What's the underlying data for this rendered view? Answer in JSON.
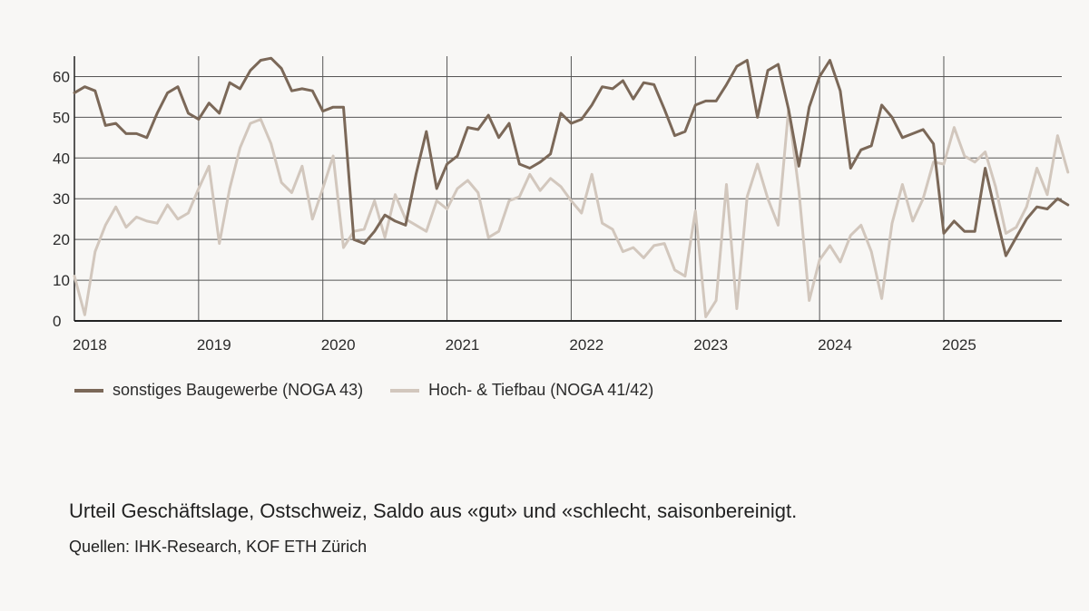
{
  "colors": {
    "series_dark": "#7b6858",
    "series_light": "#d2c7bd",
    "grid": "#555555",
    "axis": "#222222",
    "background": "#f8f7f5"
  },
  "chart_data": {
    "type": "line",
    "ylim": [
      0,
      65
    ],
    "yticks": [
      0,
      10,
      20,
      30,
      40,
      50,
      60
    ],
    "x_start_year": 2018,
    "x_end": 2025.95,
    "xticks": [
      "2018",
      "2019",
      "2020",
      "2021",
      "2022",
      "2023",
      "2024",
      "2025"
    ],
    "grid": true,
    "legend_position": "bottom-left",
    "series": [
      {
        "name": "sonstiges Baugewerbe (NOGA 43)",
        "color": "#7b6858",
        "values": [
          56,
          57.5,
          56.5,
          48,
          48.5,
          46,
          46,
          45,
          51,
          56,
          57.5,
          51,
          49.5,
          53.5,
          51,
          58.5,
          57,
          61.5,
          64,
          64.5,
          62,
          56.5,
          57,
          56.5,
          51.5,
          52.5,
          52.5,
          20,
          19,
          22,
          26,
          24.5,
          23.5,
          36,
          46.5,
          32.5,
          38.5,
          40.5,
          47.5,
          47,
          50.5,
          45,
          48.5,
          38.5,
          37.5,
          39,
          41,
          51,
          48.5,
          49.5,
          53,
          57.5,
          57,
          59,
          54.5,
          58.5,
          58,
          52,
          45.5,
          46.5,
          53,
          54,
          54,
          58,
          62.5,
          64,
          50,
          61.5,
          63,
          52,
          38,
          52.5,
          60,
          64,
          56.5,
          37.5,
          42,
          43,
          53,
          50,
          45,
          46,
          47,
          43.5,
          21.5,
          24.5,
          22,
          22,
          37.5,
          26.5,
          16,
          20.5,
          25,
          28,
          27.5,
          30,
          28.5
        ]
      },
      {
        "name": "Hoch- & Tiefbau (NOGA 41/42)",
        "color": "#d2c7bd",
        "values": [
          11,
          1.5,
          17,
          23.5,
          28,
          23,
          25.5,
          24.5,
          24,
          28.5,
          25,
          26.5,
          32.5,
          38,
          19,
          32.5,
          42.5,
          48.5,
          49.5,
          43.5,
          34,
          31.5,
          38,
          25,
          32.5,
          40.5,
          18,
          22,
          22.5,
          29.5,
          20.5,
          31,
          25,
          23.5,
          22,
          29.5,
          27.5,
          32.5,
          34.5,
          31.5,
          20.5,
          22,
          29.5,
          30.5,
          36,
          32,
          35,
          33,
          29.5,
          26.5,
          36,
          24,
          22.5,
          17,
          18,
          15.5,
          18.5,
          19,
          12.5,
          11,
          27,
          1,
          5,
          33.5,
          3,
          30.5,
          38.5,
          30,
          23.5,
          52,
          32,
          5,
          15,
          18.5,
          14.5,
          21,
          23.5,
          17,
          5.5,
          24,
          33.5,
          24.5,
          30,
          39,
          38.5,
          47.5,
          40.5,
          39,
          41.5,
          33,
          21.5,
          23,
          28,
          37.5,
          31,
          45.5,
          36.5
        ]
      }
    ]
  },
  "legend": {
    "item1": "sonstiges Baugewerbe (NOGA 43)",
    "item2": "Hoch- & Tiefbau (NOGA 41/42)"
  },
  "caption": "Urteil Geschäftslage, Ostschweiz, Saldo aus «gut» und «schlecht, saisonbereinigt.",
  "source": "Quellen: IHK-Research, KOF ETH Zürich"
}
